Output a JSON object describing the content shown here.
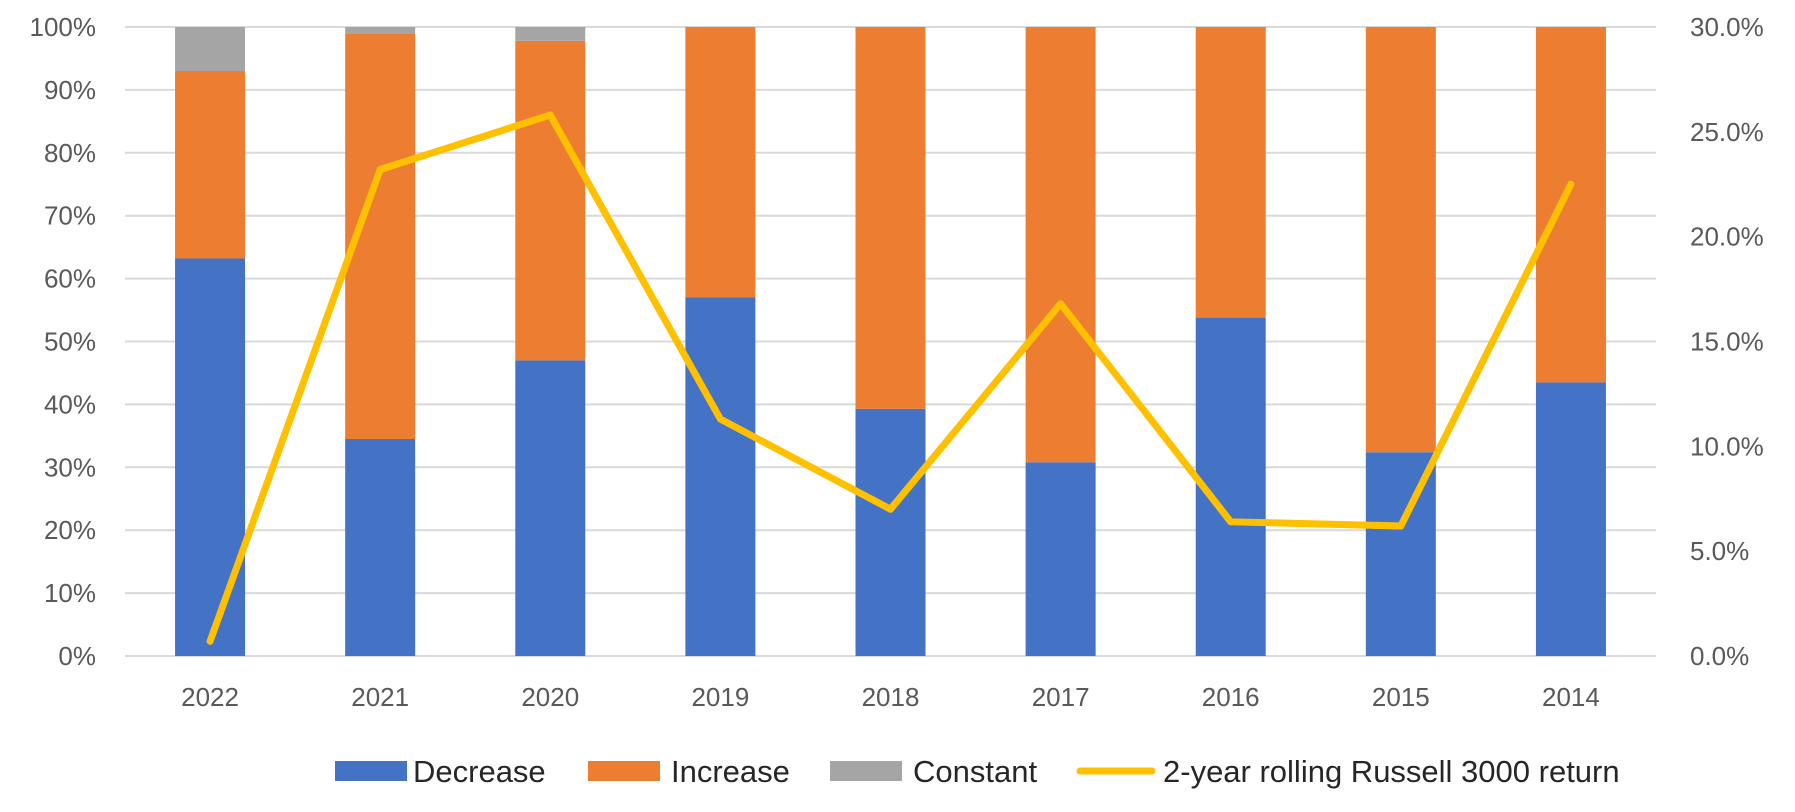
{
  "chart_data": {
    "type": "bar",
    "stacked": true,
    "categories": [
      "2022",
      "2021",
      "2020",
      "2019",
      "2018",
      "2017",
      "2016",
      "2015",
      "2014"
    ],
    "series": [
      {
        "name": "Decrease",
        "kind": "bar",
        "axis": "left",
        "color": "#4472C4",
        "values": [
          63.2,
          34.5,
          47.0,
          57.0,
          39.3,
          30.8,
          53.8,
          32.4,
          43.5
        ]
      },
      {
        "name": "Increase",
        "kind": "bar",
        "axis": "left",
        "color": "#ED7D31",
        "values": [
          29.8,
          64.5,
          50.8,
          43.0,
          60.7,
          69.2,
          46.2,
          67.6,
          56.5
        ]
      },
      {
        "name": "Constant",
        "kind": "bar",
        "axis": "left",
        "color": "#A5A5A5",
        "values": [
          7.0,
          1.0,
          2.2,
          0,
          0,
          0,
          0,
          0,
          0
        ]
      },
      {
        "name": "2-year rolling Russell 3000 return",
        "kind": "line",
        "axis": "right",
        "color": "#FFC000",
        "values": [
          0.7,
          23.2,
          25.8,
          11.3,
          7.0,
          16.8,
          6.4,
          6.2,
          22.5
        ]
      }
    ],
    "y_left": {
      "ticks": [
        "0%",
        "10%",
        "20%",
        "30%",
        "40%",
        "50%",
        "60%",
        "70%",
        "80%",
        "90%",
        "100%"
      ],
      "lim": [
        0,
        100
      ]
    },
    "y_right": {
      "ticks": [
        "0.0%",
        "5.0%",
        "10.0%",
        "15.0%",
        "20.0%",
        "25.0%",
        "30.0%"
      ],
      "lim": [
        0,
        30
      ]
    },
    "grid": true,
    "legend_position": "bottom"
  }
}
